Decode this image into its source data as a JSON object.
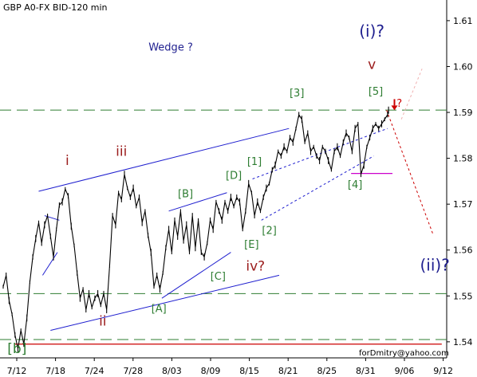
{
  "chart_data": {
    "type": "line",
    "title": "GBP A0-FX BID-120 min",
    "credit": "forDmitry@yahoo.com",
    "y_ticks": [
      "1.54",
      "1.55",
      "1.56",
      "1.57",
      "1.58",
      "1.59",
      "1.60",
      "1.61"
    ],
    "y_tick_values": [
      1.54,
      1.55,
      1.56,
      1.57,
      1.58,
      1.59,
      1.6,
      1.61
    ],
    "x_ticks": [
      "7/12",
      "7/18",
      "7/24",
      "7/28",
      "8/03",
      "8/09",
      "8/15",
      "8/21",
      "8/25",
      "8/31",
      "9/06",
      "9/12"
    ],
    "ylim": [
      1.5365,
      1.6145
    ],
    "x_range": [
      0,
      45
    ],
    "grid": false,
    "series": [
      {
        "values": [
          [
            0.0,
            1.552
          ],
          [
            0.3,
            1.5545
          ],
          [
            0.6,
            1.549
          ],
          [
            0.9,
            1.546
          ],
          [
            1.2,
            1.5415
          ],
          [
            1.5,
            1.5385
          ],
          [
            1.8,
            1.5425
          ],
          [
            2.1,
            1.5395
          ],
          [
            2.4,
            1.5452
          ],
          [
            2.7,
            1.553
          ],
          [
            3.0,
            1.5585
          ],
          [
            3.3,
            1.5625
          ],
          [
            3.6,
            1.566
          ],
          [
            3.9,
            1.5615
          ],
          [
            4.2,
            1.5655
          ],
          [
            4.5,
            1.5675
          ],
          [
            4.8,
            1.563
          ],
          [
            5.1,
            1.5585
          ],
          [
            5.4,
            1.5645
          ],
          [
            5.7,
            1.5698
          ],
          [
            6.0,
            1.5705
          ],
          [
            6.3,
            1.5733
          ],
          [
            6.6,
            1.5718
          ],
          [
            6.9,
            1.5652
          ],
          [
            7.2,
            1.561
          ],
          [
            7.5,
            1.555
          ],
          [
            7.8,
            1.5495
          ],
          [
            8.1,
            1.5515
          ],
          [
            8.4,
            1.547
          ],
          [
            8.7,
            1.5505
          ],
          [
            9.0,
            1.5475
          ],
          [
            9.3,
            1.5495
          ],
          [
            9.6,
            1.5505
          ],
          [
            9.9,
            1.548
          ],
          [
            10.2,
            1.5505
          ],
          [
            10.5,
            1.547
          ],
          [
            10.8,
            1.5565
          ],
          [
            11.1,
            1.5675
          ],
          [
            11.4,
            1.5655
          ],
          [
            11.7,
            1.5725
          ],
          [
            12.0,
            1.571
          ],
          [
            12.3,
            1.5765
          ],
          [
            12.6,
            1.5735
          ],
          [
            12.9,
            1.5715
          ],
          [
            13.2,
            1.5735
          ],
          [
            13.5,
            1.5695
          ],
          [
            13.8,
            1.5715
          ],
          [
            14.1,
            1.566
          ],
          [
            14.4,
            1.5685
          ],
          [
            14.7,
            1.5632
          ],
          [
            15.0,
            1.5595
          ],
          [
            15.3,
            1.552
          ],
          [
            15.6,
            1.5545
          ],
          [
            15.9,
            1.5515
          ],
          [
            16.2,
            1.555
          ],
          [
            16.5,
            1.5605
          ],
          [
            16.8,
            1.5645
          ],
          [
            17.1,
            1.5595
          ],
          [
            17.4,
            1.5665
          ],
          [
            17.7,
            1.563
          ],
          [
            18.0,
            1.5685
          ],
          [
            18.3,
            1.562
          ],
          [
            18.6,
            1.5655
          ],
          [
            18.9,
            1.5595
          ],
          [
            19.2,
            1.5675
          ],
          [
            19.5,
            1.5605
          ],
          [
            19.8,
            1.5665
          ],
          [
            20.1,
            1.5595
          ],
          [
            20.4,
            1.5585
          ],
          [
            20.7,
            1.5615
          ],
          [
            21.0,
            1.5665
          ],
          [
            21.3,
            1.5645
          ],
          [
            21.6,
            1.5705
          ],
          [
            21.9,
            1.5685
          ],
          [
            22.2,
            1.5665
          ],
          [
            22.5,
            1.5705
          ],
          [
            22.8,
            1.5685
          ],
          [
            23.1,
            1.5715
          ],
          [
            23.4,
            1.5695
          ],
          [
            23.7,
            1.5715
          ],
          [
            24.0,
            1.5705
          ],
          [
            24.3,
            1.5645
          ],
          [
            24.6,
            1.5685
          ],
          [
            24.9,
            1.5745
          ],
          [
            25.2,
            1.5725
          ],
          [
            25.5,
            1.5675
          ],
          [
            25.8,
            1.5705
          ],
          [
            26.1,
            1.5685
          ],
          [
            26.4,
            1.5715
          ],
          [
            26.7,
            1.5735
          ],
          [
            27.0,
            1.5745
          ],
          [
            27.3,
            1.5775
          ],
          [
            27.6,
            1.5785
          ],
          [
            27.9,
            1.5815
          ],
          [
            28.2,
            1.5805
          ],
          [
            28.5,
            1.5825
          ],
          [
            28.8,
            1.5815
          ],
          [
            29.1,
            1.5845
          ],
          [
            29.4,
            1.5835
          ],
          [
            29.7,
            1.5865
          ],
          [
            30.0,
            1.5895
          ],
          [
            30.3,
            1.5885
          ],
          [
            30.6,
            1.5835
          ],
          [
            30.9,
            1.5855
          ],
          [
            31.2,
            1.5815
          ],
          [
            31.5,
            1.5825
          ],
          [
            31.8,
            1.5805
          ],
          [
            32.1,
            1.5795
          ],
          [
            32.4,
            1.5825
          ],
          [
            32.7,
            1.5815
          ],
          [
            33.0,
            1.5795
          ],
          [
            33.3,
            1.5775
          ],
          [
            33.6,
            1.5815
          ],
          [
            33.9,
            1.5825
          ],
          [
            34.2,
            1.5805
          ],
          [
            34.5,
            1.5835
          ],
          [
            34.8,
            1.5855
          ],
          [
            35.1,
            1.5845
          ],
          [
            35.4,
            1.5815
          ],
          [
            35.7,
            1.5865
          ],
          [
            36.0,
            1.5875
          ],
          [
            36.3,
            1.5765
          ],
          [
            36.6,
            1.5785
          ],
          [
            36.9,
            1.5825
          ],
          [
            37.2,
            1.5845
          ],
          [
            37.5,
            1.5865
          ],
          [
            37.8,
            1.5875
          ],
          [
            38.1,
            1.5865
          ],
          [
            38.4,
            1.5875
          ],
          [
            38.7,
            1.5885
          ],
          [
            39.0,
            1.5895
          ],
          [
            39.1,
            1.5905
          ]
        ]
      }
    ],
    "annotations": [
      {
        "text": "Wedge ?",
        "x": 17.0,
        "y": 1.6035,
        "color": "#1f1f8f"
      },
      {
        "text": "(i)?",
        "x": 37.4,
        "y": 1.6065,
        "color": "#1f1f8f"
      },
      {
        "text": "v",
        "x": 37.4,
        "y": 1.5995,
        "color": "#9b1c1c"
      },
      {
        "text": "[3]",
        "x": 29.8,
        "y": 1.5935,
        "color": "#2e7d32"
      },
      {
        "text": "[5]",
        "x": 37.8,
        "y": 1.5938,
        "color": "#2e7d32"
      },
      {
        "text": "?",
        "x": 40.2,
        "y": 1.5912,
        "color": "#cc0000"
      },
      {
        "text": "i",
        "x": 6.5,
        "y": 1.5785,
        "color": "#9b1c1c"
      },
      {
        "text": "iii",
        "x": 12.0,
        "y": 1.5805,
        "color": "#9b1c1c"
      },
      {
        "text": "[1]",
        "x": 25.5,
        "y": 1.5785,
        "color": "#2e7d32"
      },
      {
        "text": "[D]",
        "x": 23.4,
        "y": 1.5755,
        "color": "#2e7d32"
      },
      {
        "text": "[B]",
        "x": 18.5,
        "y": 1.5715,
        "color": "#2e7d32"
      },
      {
        "text": "[4]",
        "x": 35.7,
        "y": 1.5735,
        "color": "#2e7d32"
      },
      {
        "text": "[2]",
        "x": 27.0,
        "y": 1.5635,
        "color": "#2e7d32"
      },
      {
        "text": "[E]",
        "x": 25.2,
        "y": 1.5605,
        "color": "#2e7d32"
      },
      {
        "text": "iv?",
        "x": 25.6,
        "y": 1.5555,
        "color": "#9b1c1c"
      },
      {
        "text": "[C]",
        "x": 21.8,
        "y": 1.5535,
        "color": "#2e7d32"
      },
      {
        "text": "(ii)?",
        "x": 43.8,
        "y": 1.5555,
        "color": "#1f1f8f"
      },
      {
        "text": "[A]",
        "x": 15.8,
        "y": 1.5465,
        "color": "#2e7d32"
      },
      {
        "text": "ii",
        "x": 10.1,
        "y": 1.5435,
        "color": "#9b1c1c"
      },
      {
        "text": "[b]",
        "x": 1.4,
        "y": 1.5375,
        "color": "#2e7d32"
      }
    ],
    "lines": [
      {
        "kind": "hline-dashed",
        "y": 1.5905,
        "color": "#2e7d32"
      },
      {
        "kind": "hline-dashed",
        "y": 1.5505,
        "color": "#2e7d32"
      },
      {
        "kind": "hline-dashed",
        "y": 1.5405,
        "color": "#2e7d32"
      },
      {
        "kind": "hline",
        "y": 1.5395,
        "x1": 1.1,
        "x2": 44.5,
        "color": "#cc0000"
      },
      {
        "kind": "hline",
        "y": 1.5767,
        "x1": 35.3,
        "x2": 39.5,
        "color": "#cc00cc"
      },
      {
        "kind": "segment",
        "x1": 3.6,
        "y1": 1.5728,
        "x2": 29.0,
        "y2": 1.5865,
        "color": "#1f1fcf",
        "dash": false
      },
      {
        "kind": "segment",
        "x1": 4.8,
        "y1": 1.5425,
        "x2": 28.0,
        "y2": 1.5545,
        "color": "#1f1fcf",
        "dash": false
      },
      {
        "kind": "segment",
        "x1": 16.8,
        "y1": 1.5685,
        "x2": 22.7,
        "y2": 1.5725,
        "color": "#1f1fcf",
        "dash": false
      },
      {
        "kind": "segment",
        "x1": 16.1,
        "y1": 1.5495,
        "x2": 23.1,
        "y2": 1.5595,
        "color": "#1f1fcf",
        "dash": false
      },
      {
        "kind": "segment",
        "x1": 4.0,
        "y1": 1.5545,
        "x2": 5.5,
        "y2": 1.5595,
        "color": "#1f1fcf",
        "dash": false
      },
      {
        "kind": "segment",
        "x1": 4.2,
        "y1": 1.5675,
        "x2": 5.7,
        "y2": 1.5665,
        "color": "#1f1fcf",
        "dash": false
      },
      {
        "kind": "segment",
        "x1": 25.3,
        "y1": 1.5755,
        "x2": 39.0,
        "y2": 1.5865,
        "color": "#1f1fcf",
        "dash": true
      },
      {
        "kind": "segment",
        "x1": 26.2,
        "y1": 1.5665,
        "x2": 37.6,
        "y2": 1.5805,
        "color": "#1f1fcf",
        "dash": true
      },
      {
        "kind": "segment",
        "x1": 38.9,
        "y1": 1.5905,
        "x2": 43.6,
        "y2": 1.5635,
        "color": "#cc0000",
        "dash": true
      },
      {
        "kind": "segment",
        "x1": 40.4,
        "y1": 1.5885,
        "x2": 42.5,
        "y2": 1.5995,
        "color": "#f0b0b0",
        "dash": true
      }
    ],
    "arrow": {
      "x": 39.7,
      "y": 1.5915,
      "color": "#cc0000"
    }
  }
}
